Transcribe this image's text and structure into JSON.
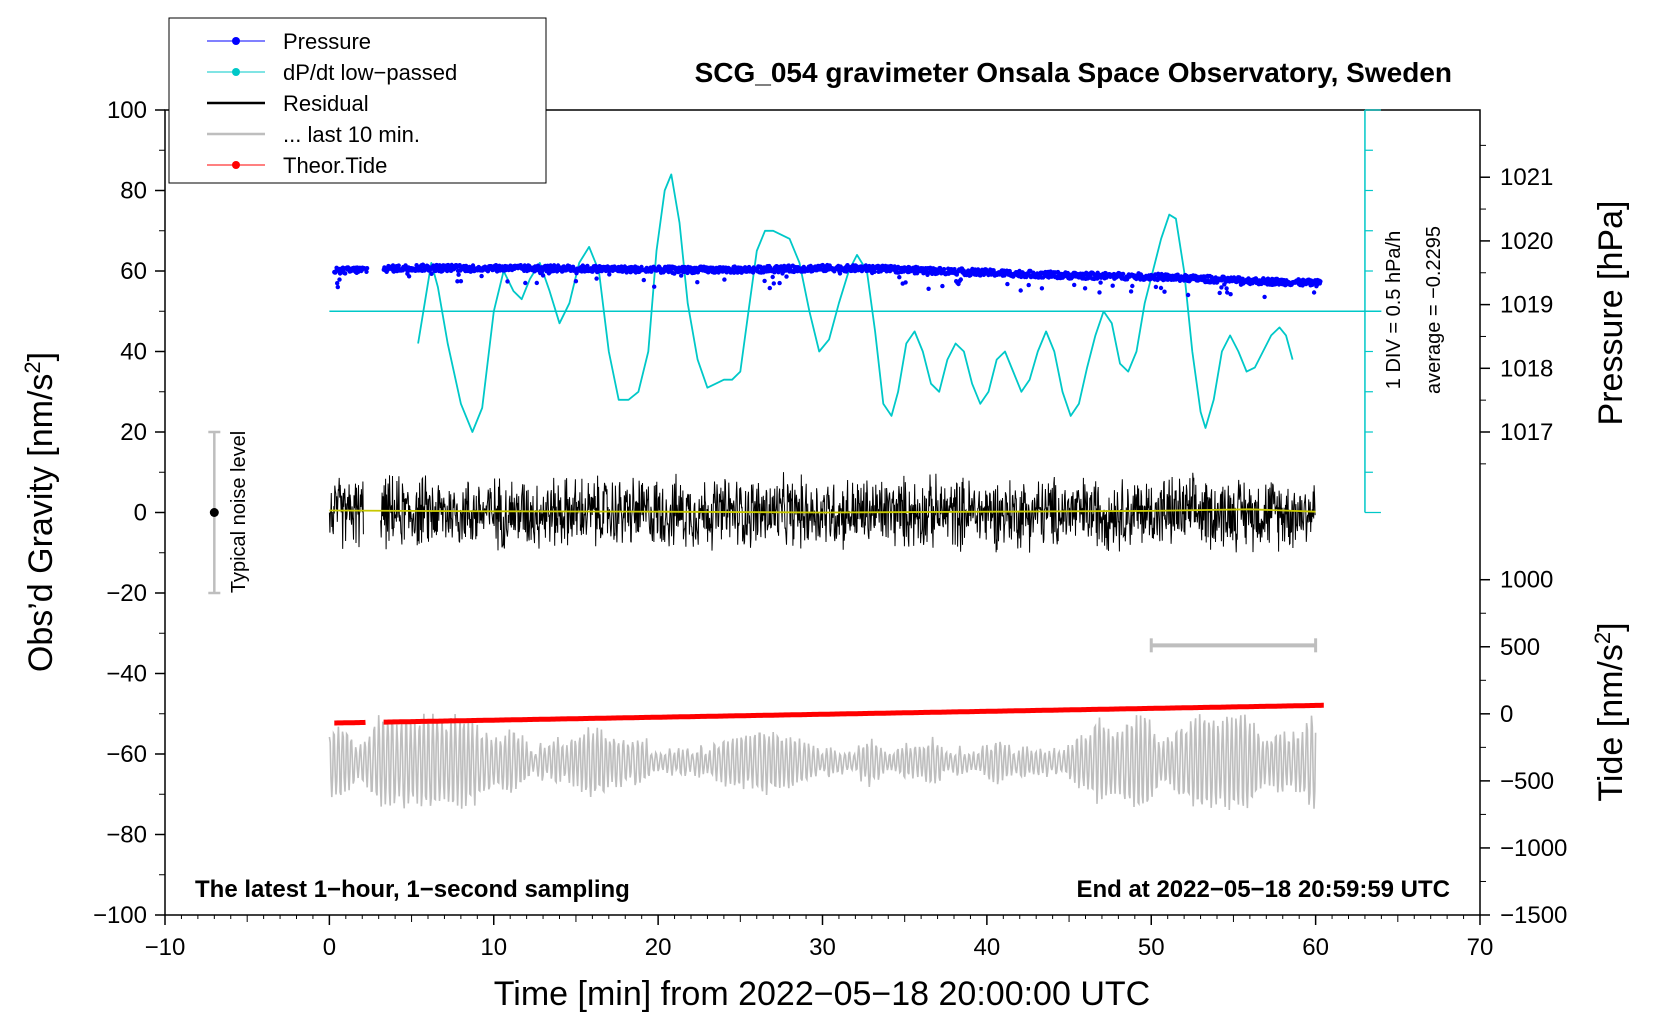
{
  "chart_data": {
    "type": "line",
    "title": "SCG_054 gravimeter Onsala Space Observatory, Sweden",
    "xlabel": "Time [min] from 2022−05−18 20:00:00 UTC",
    "ylabel_left": "Obs’d Gravity [nm/s",
    "ylabel_left_sup": "2",
    "ylabel_left_tail": "]",
    "ylabel_right_pressure": "Pressure [hPa]",
    "ylabel_right_tide": "Tide [nm/s",
    "ylabel_right_tide_sup": "2",
    "ylabel_right_tide_tail": "]",
    "xlim": [
      -10,
      70
    ],
    "ylim": [
      -100,
      100
    ],
    "x_ticks": [
      "−10",
      "0",
      "10",
      "20",
      "30",
      "40",
      "50",
      "60",
      "70"
    ],
    "x_tick_values": [
      -10,
      0,
      10,
      20,
      30,
      40,
      50,
      60,
      70
    ],
    "y_ticks": [
      "−100",
      "−80",
      "−60",
      "−40",
      "−20",
      "0",
      "20",
      "40",
      "60",
      "80",
      "100"
    ],
    "y_tick_values": [
      -100,
      -80,
      -60,
      -40,
      -20,
      0,
      20,
      40,
      60,
      80,
      100
    ],
    "pressure_axis": {
      "ticks": [
        "1017",
        "1018",
        "1019",
        "1020",
        "1021"
      ],
      "tick_values": [
        1017,
        1018,
        1019,
        1020,
        1021
      ],
      "map": {
        "hpa": [
          1017,
          1021
        ],
        "gravity": [
          20,
          83.3
        ]
      }
    },
    "tide_axis": {
      "ticks": [
        "1000",
        "500",
        "0",
        "−500",
        "−1000",
        "−1500"
      ],
      "tick_values": [
        1000,
        500,
        0,
        -500,
        -1000,
        -1500
      ],
      "map": {
        "tide": [
          1000,
          -1500
        ],
        "gravity": [
          -16.7,
          -100
        ]
      }
    },
    "legend": [
      {
        "label": "Pressure",
        "color": "#0000ff",
        "marker": true
      },
      {
        "label": "dP/dt low−passed",
        "color": "#00c8c8",
        "marker": true
      },
      {
        "label": "Residual",
        "color": "#000000",
        "marker": false
      },
      {
        "label": "... last 10 min.",
        "color": "#bebebe",
        "marker": false
      },
      {
        "label": "Theor.Tide",
        "color": "#ff0000",
        "marker": true
      }
    ],
    "annotations": {
      "bottom_left": "The latest 1−hour, 1−second sampling",
      "bottom_right": "End at 2022−05−18 20:59:59 UTC",
      "noise": "Typical noise level",
      "dpdt_scale": "1 DIV = 0.5 hPa/h",
      "dpdt_average": "average = −0.2295"
    },
    "noise_bar": {
      "x": -7,
      "y": 0,
      "low": -20,
      "high": 20
    },
    "window_bar": {
      "x_start": 50,
      "x_end": 60,
      "y": -33
    },
    "dpdt_axis": {
      "x": 63,
      "zero_level": 50,
      "y_top": 100,
      "y_bottom": 0,
      "divisions": 10
    },
    "series": [
      {
        "name": "Pressure",
        "color": "#0000ff",
        "style": "points",
        "gaps": [
          [
            2.3,
            3.3
          ]
        ],
        "points": [
          [
            0.3,
            60.0
          ],
          [
            5,
            60.8
          ],
          [
            10,
            60.7
          ],
          [
            15,
            60.6
          ],
          [
            20,
            60.3
          ],
          [
            25,
            60.3
          ],
          [
            30,
            60.7
          ],
          [
            33,
            60.6
          ],
          [
            40,
            59.6
          ],
          [
            45,
            58.9
          ],
          [
            50,
            58.6
          ],
          [
            55,
            57.7
          ],
          [
            60,
            57.0
          ],
          [
            60.3,
            57.0
          ]
        ]
      },
      {
        "name": "dP/dt low−passed",
        "color": "#00c8c8",
        "style": "line",
        "points": [
          [
            5.4,
            42
          ],
          [
            5.8,
            52
          ],
          [
            6.2,
            62
          ],
          [
            6.6,
            56
          ],
          [
            7.2,
            42
          ],
          [
            8.0,
            27
          ],
          [
            8.7,
            20
          ],
          [
            9.3,
            26
          ],
          [
            10.0,
            50
          ],
          [
            10.6,
            60
          ],
          [
            11.2,
            55
          ],
          [
            11.7,
            53
          ],
          [
            12.2,
            58
          ],
          [
            12.8,
            62
          ],
          [
            13.4,
            55
          ],
          [
            14.0,
            47
          ],
          [
            14.6,
            52
          ],
          [
            15.2,
            62
          ],
          [
            15.8,
            66
          ],
          [
            16.4,
            60
          ],
          [
            17.0,
            40
          ],
          [
            17.6,
            28
          ],
          [
            18.2,
            28
          ],
          [
            18.8,
            30
          ],
          [
            19.4,
            40
          ],
          [
            19.9,
            65
          ],
          [
            20.4,
            80
          ],
          [
            20.8,
            84
          ],
          [
            21.3,
            72
          ],
          [
            21.8,
            52
          ],
          [
            22.4,
            38
          ],
          [
            23.0,
            31
          ],
          [
            23.5,
            32
          ],
          [
            24.0,
            33
          ],
          [
            24.5,
            33
          ],
          [
            25.0,
            35
          ],
          [
            25.5,
            50
          ],
          [
            26.0,
            65
          ],
          [
            26.5,
            70
          ],
          [
            27.0,
            70
          ],
          [
            27.5,
            69
          ],
          [
            28.0,
            68
          ],
          [
            28.6,
            62
          ],
          [
            29.2,
            50
          ],
          [
            29.8,
            40
          ],
          [
            30.4,
            43
          ],
          [
            31.0,
            52
          ],
          [
            31.6,
            60
          ],
          [
            32.1,
            64
          ],
          [
            32.7,
            60
          ],
          [
            33.2,
            45
          ],
          [
            33.7,
            27
          ],
          [
            34.2,
            24
          ],
          [
            34.6,
            30
          ],
          [
            35.1,
            42
          ],
          [
            35.6,
            45
          ],
          [
            36.1,
            40
          ],
          [
            36.6,
            32
          ],
          [
            37.1,
            30
          ],
          [
            37.6,
            38
          ],
          [
            38.1,
            42
          ],
          [
            38.6,
            40
          ],
          [
            39.1,
            32
          ],
          [
            39.6,
            27
          ],
          [
            40.1,
            30
          ],
          [
            40.6,
            38
          ],
          [
            41.1,
            40
          ],
          [
            41.6,
            35
          ],
          [
            42.1,
            30
          ],
          [
            42.6,
            33
          ],
          [
            43.1,
            40
          ],
          [
            43.6,
            45
          ],
          [
            44.1,
            40
          ],
          [
            44.6,
            30
          ],
          [
            45.1,
            24
          ],
          [
            45.6,
            27
          ],
          [
            46.1,
            36
          ],
          [
            46.6,
            44
          ],
          [
            47.1,
            50
          ],
          [
            47.6,
            47
          ],
          [
            48.1,
            37
          ],
          [
            48.6,
            35
          ],
          [
            49.1,
            40
          ],
          [
            49.6,
            52
          ],
          [
            50.1,
            60
          ],
          [
            50.6,
            68
          ],
          [
            51.1,
            74
          ],
          [
            51.5,
            73
          ],
          [
            52.0,
            60
          ],
          [
            52.5,
            40
          ],
          [
            53.0,
            25
          ],
          [
            53.3,
            21
          ],
          [
            53.8,
            28
          ],
          [
            54.3,
            40
          ],
          [
            54.8,
            44
          ],
          [
            55.3,
            40
          ],
          [
            55.8,
            35
          ],
          [
            56.3,
            36
          ],
          [
            56.8,
            40
          ],
          [
            57.3,
            44
          ],
          [
            57.8,
            46
          ],
          [
            58.2,
            44
          ],
          [
            58.6,
            38
          ]
        ]
      },
      {
        "name": "Residual",
        "color": "#000000",
        "style": "noise",
        "gaps": [
          [
            2.1,
            3.1
          ]
        ],
        "points": [
          [
            0,
            0
          ],
          [
            2.1,
            0
          ],
          [
            3.1,
            0
          ],
          [
            60,
            0
          ]
        ],
        "amplitude": 7
      },
      {
        "name": "Residual smoothed",
        "color": "#c8c800",
        "style": "line",
        "points": [
          [
            0,
            0.5
          ],
          [
            10,
            0.3
          ],
          [
            20,
            0.2
          ],
          [
            30,
            0.0
          ],
          [
            40,
            0.2
          ],
          [
            50,
            0.4
          ],
          [
            56,
            0.8
          ],
          [
            60,
            0.2
          ]
        ]
      },
      {
        "name": "... last 10 min.",
        "color": "#bebebe",
        "style": "oscillation",
        "points": [
          [
            0,
            -62
          ],
          [
            60,
            -62
          ]
        ],
        "amplitude": 7
      },
      {
        "name": "Theor.Tide",
        "color": "#ff0000",
        "style": "thick",
        "gaps": [
          [
            2.3,
            3.3
          ]
        ],
        "points": [
          [
            0.3,
            -52.3
          ],
          [
            60.5,
            -47.9
          ]
        ]
      }
    ]
  }
}
